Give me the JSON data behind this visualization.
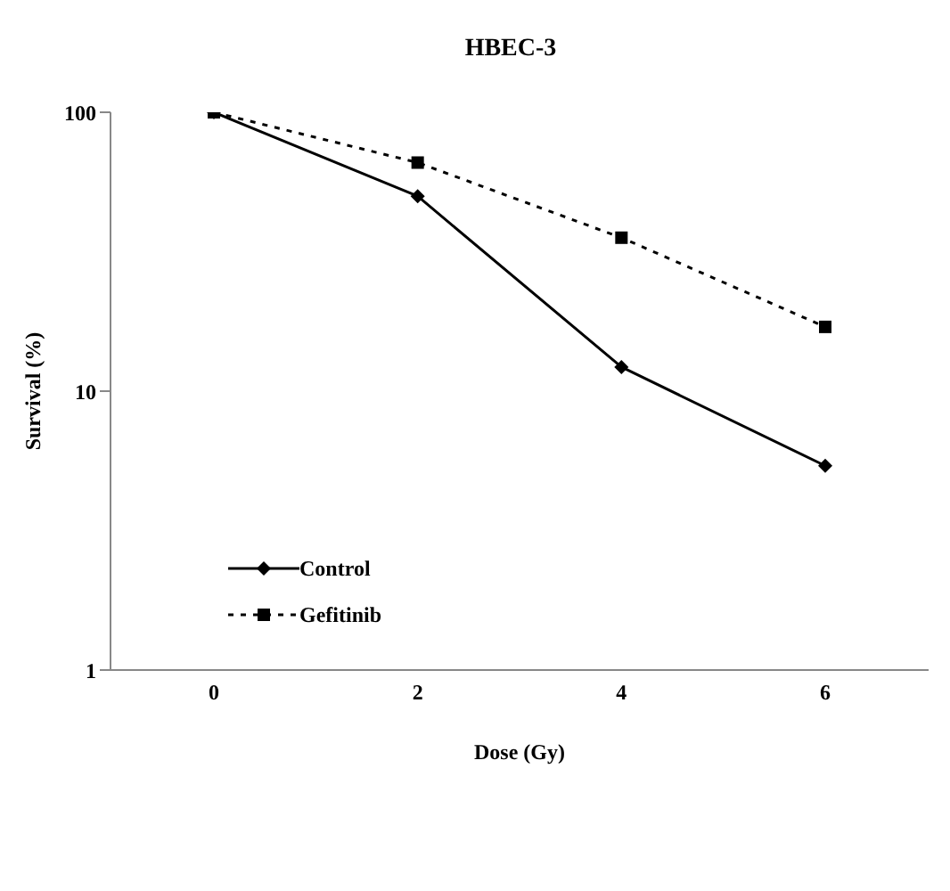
{
  "chart_data": {
    "type": "line",
    "title": "HBEC-3",
    "xlabel": "Dose (Gy)",
    "ylabel": "Survival (%)",
    "categories": [
      "0",
      "2",
      "4",
      "6"
    ],
    "log": "y",
    "ylim": [
      1,
      100
    ],
    "yticks": [
      1,
      10,
      100
    ],
    "grid": false,
    "legend": "bottom left",
    "series": [
      {
        "name": "Control",
        "color": "#000000",
        "values": [
          100,
          50,
          12.2,
          5.4
        ],
        "marker": "diamond",
        "line_style": "solid"
      },
      {
        "name": "Gefitinib",
        "color": "#000000",
        "values": [
          100,
          66,
          35.5,
          17
        ],
        "marker": "square",
        "line_style": "dotted"
      }
    ]
  }
}
